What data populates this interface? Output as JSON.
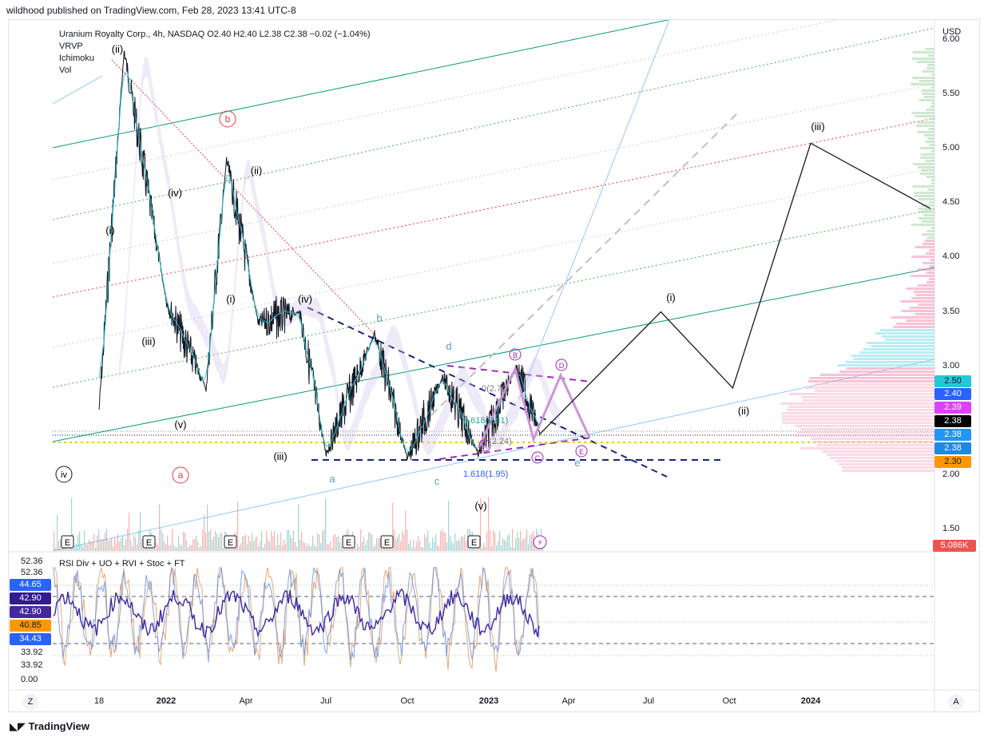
{
  "header": {
    "publish_line": "wildhood published on TradingView.com, Feb 28, 2023 13:41 UTC-8"
  },
  "legend": {
    "symbol_line": "Uranium Royalty Corp., 4h, NASDAQ  O2.40  H2.40  L2.38  C2.38  −0.02 (−1.04%)",
    "indicators": [
      "VRVP",
      "Ichimoku",
      "Vol"
    ]
  },
  "currency": "USD",
  "price_axis": [
    "6.00",
    "5.50",
    "5.00",
    "4.50",
    "4.00",
    "3.50",
    "3.00",
    "2.50",
    "2.00",
    "1.50"
  ],
  "price_tags": [
    {
      "text": "2.50",
      "bg": "#26c6da",
      "fg": "#131722"
    },
    {
      "text": "2.40",
      "bg": "#2962ff",
      "fg": "#ffffff"
    },
    {
      "text": "2.39",
      "bg": "#e040fb",
      "fg": "#ffffff"
    },
    {
      "text": "2.38",
      "bg": "#000000",
      "fg": "#ffffff"
    },
    {
      "text": "2.38",
      "bg": "#2196f3",
      "fg": "#ffffff"
    },
    {
      "text": "2.38",
      "bg": "#1e88e5",
      "fg": "#ffffff"
    },
    {
      "text": "2.30",
      "bg": "#ff9800",
      "fg": "#131722"
    },
    {
      "text": "5.086K",
      "bg": "#ef5350",
      "fg": "#ffffff"
    }
  ],
  "time_axis": [
    "18",
    "2022",
    "Apr",
    "Jul",
    "Oct",
    "2023",
    "Apr",
    "Jul",
    "Oct",
    "2024"
  ],
  "wave_labels": {
    "black": [
      "(ii)",
      "(iv)",
      "(i)",
      "(iii)",
      "(v)",
      "(ii)",
      "(i)",
      "(iv)",
      "(iii)",
      "(v)",
      "(i)",
      "(ii)",
      "(iii)",
      "iv"
    ],
    "red": [
      "b",
      "a"
    ],
    "blue": [
      "a",
      "b",
      "c",
      "d",
      "e"
    ],
    "purple": [
      "B",
      "D",
      "A",
      "C",
      "E"
    ]
  },
  "fib_labels": [
    "0(2.72)",
    "0.618(2.41)",
    "(2.24)",
    "1.618(1.95)"
  ],
  "events": [
    "E",
    "E",
    "E",
    "E",
    "E",
    "E"
  ],
  "indicator": {
    "title": "RSI Div + UO + RVI + Stoc + FT",
    "axis": [
      "52.36",
      "52.36",
      "33.92",
      "33.92",
      "0.00"
    ],
    "tags": [
      {
        "text": "44.65",
        "bg": "#2962ff",
        "fg": "#ffffff"
      },
      {
        "text": "42.90",
        "bg": "#311b92",
        "fg": "#ffffff"
      },
      {
        "text": "42.90",
        "bg": "#4527a0",
        "fg": "#ffffff"
      },
      {
        "text": "40.85",
        "bg": "#ff9800",
        "fg": "#131722"
      },
      {
        "text": "34.43",
        "bg": "#2962ff",
        "fg": "#ffffff"
      }
    ]
  },
  "footer": {
    "brand": "TradingView",
    "left_button": "Z",
    "right_button": "A"
  },
  "chart_data": {
    "type": "line",
    "title": "Uranium Royalty Corp., 4h, NASDAQ",
    "ohlc_last": {
      "open": 2.4,
      "high": 2.4,
      "low": 2.38,
      "close": 2.38,
      "change": -0.02,
      "change_pct": -1.04
    },
    "ylim": [
      1.35,
      6.05
    ],
    "x": [
      "2021-10-18",
      "2021-11-15",
      "2022-01-01",
      "2022-02-15",
      "2022-03-10",
      "2022-04-15",
      "2022-06-01",
      "2022-07-01",
      "2022-08-25",
      "2022-10-01",
      "2022-11-10",
      "2022-12-20",
      "2023-02-01",
      "2023-02-28"
    ],
    "series": [
      {
        "name": "",
        "values": [
          2.6,
          5.9,
          3.6,
          2.8,
          4.9,
          3.4,
          3.5,
          2.2,
          3.3,
          2.15,
          2.9,
          2.2,
          3.0,
          2.38
        ]
      }
    ],
    "projection": {
      "x": [
        "2023-02-28",
        "2023-07-15",
        "2023-10-05",
        "2024-01-01",
        "2024-05-15"
      ],
      "values": [
        2.38,
        3.5,
        2.8,
        5.05,
        4.45
      ]
    },
    "volume_last": "5.086K",
    "indicator": {
      "name": "RSI Div + UO + RVI + Stoc + FT",
      "last_values": [
        44.65,
        42.9,
        42.9,
        40.85,
        34.43
      ]
    }
  }
}
